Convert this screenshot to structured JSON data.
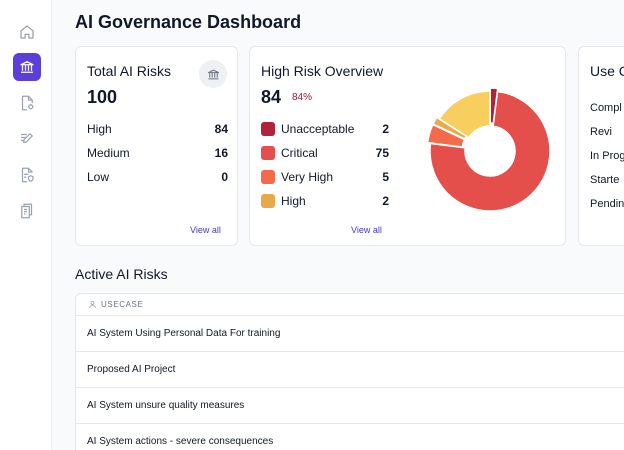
{
  "page": {
    "title": "AI Governance Dashboard"
  },
  "sidebar": {
    "items": [
      {
        "icon": "home-icon"
      },
      {
        "icon": "bank-icon",
        "active": true
      },
      {
        "icon": "document-settings-icon"
      },
      {
        "icon": "edit-check-icon"
      },
      {
        "icon": "document-shield-icon"
      },
      {
        "icon": "documents-icon"
      }
    ],
    "active_color": "#5b3fd6"
  },
  "total_risks_card": {
    "title": "Total AI Risks",
    "total": "100",
    "icon": "bank-icon",
    "rows": [
      {
        "label": "High",
        "value": "84"
      },
      {
        "label": "Medium",
        "value": "16"
      },
      {
        "label": "Low",
        "value": "0"
      }
    ],
    "view_all": "View all"
  },
  "high_risk_card": {
    "title": "High Risk Overview",
    "total": "84",
    "percent": "84%",
    "percent_color": "#9f1239",
    "legend": [
      {
        "label": "Unacceptable",
        "value": "2",
        "color": "#b1223c"
      },
      {
        "label": "Critical",
        "value": "75",
        "color": "#e44f4b"
      },
      {
        "label": "Very High",
        "value": "5",
        "color": "#f36b4a"
      },
      {
        "label": "High",
        "value": "2",
        "color": "#e8a94b"
      }
    ],
    "view_all": "View all"
  },
  "chart_data": {
    "type": "pie",
    "donut": true,
    "slices": [
      {
        "value": 2,
        "color": "#b1223c"
      },
      {
        "value": 75,
        "color": "#e44f4b"
      },
      {
        "value": 5,
        "color": "#f36b4a"
      },
      {
        "value": 2,
        "color": "#e8a94b"
      },
      {
        "value": 16,
        "color": "#f8cf5e"
      }
    ]
  },
  "usecase_card": {
    "title": "Use C",
    "rows": [
      "Compl",
      "Revi",
      "In Prog",
      "Starte",
      "Pendin"
    ]
  },
  "active_risks": {
    "title": "Active AI Risks",
    "column": "USECASE",
    "rows": [
      "AI System Using Personal Data For training",
      "Proposed AI Project",
      "AI System unsure quality measures",
      "AI System actions - severe consequences"
    ]
  }
}
